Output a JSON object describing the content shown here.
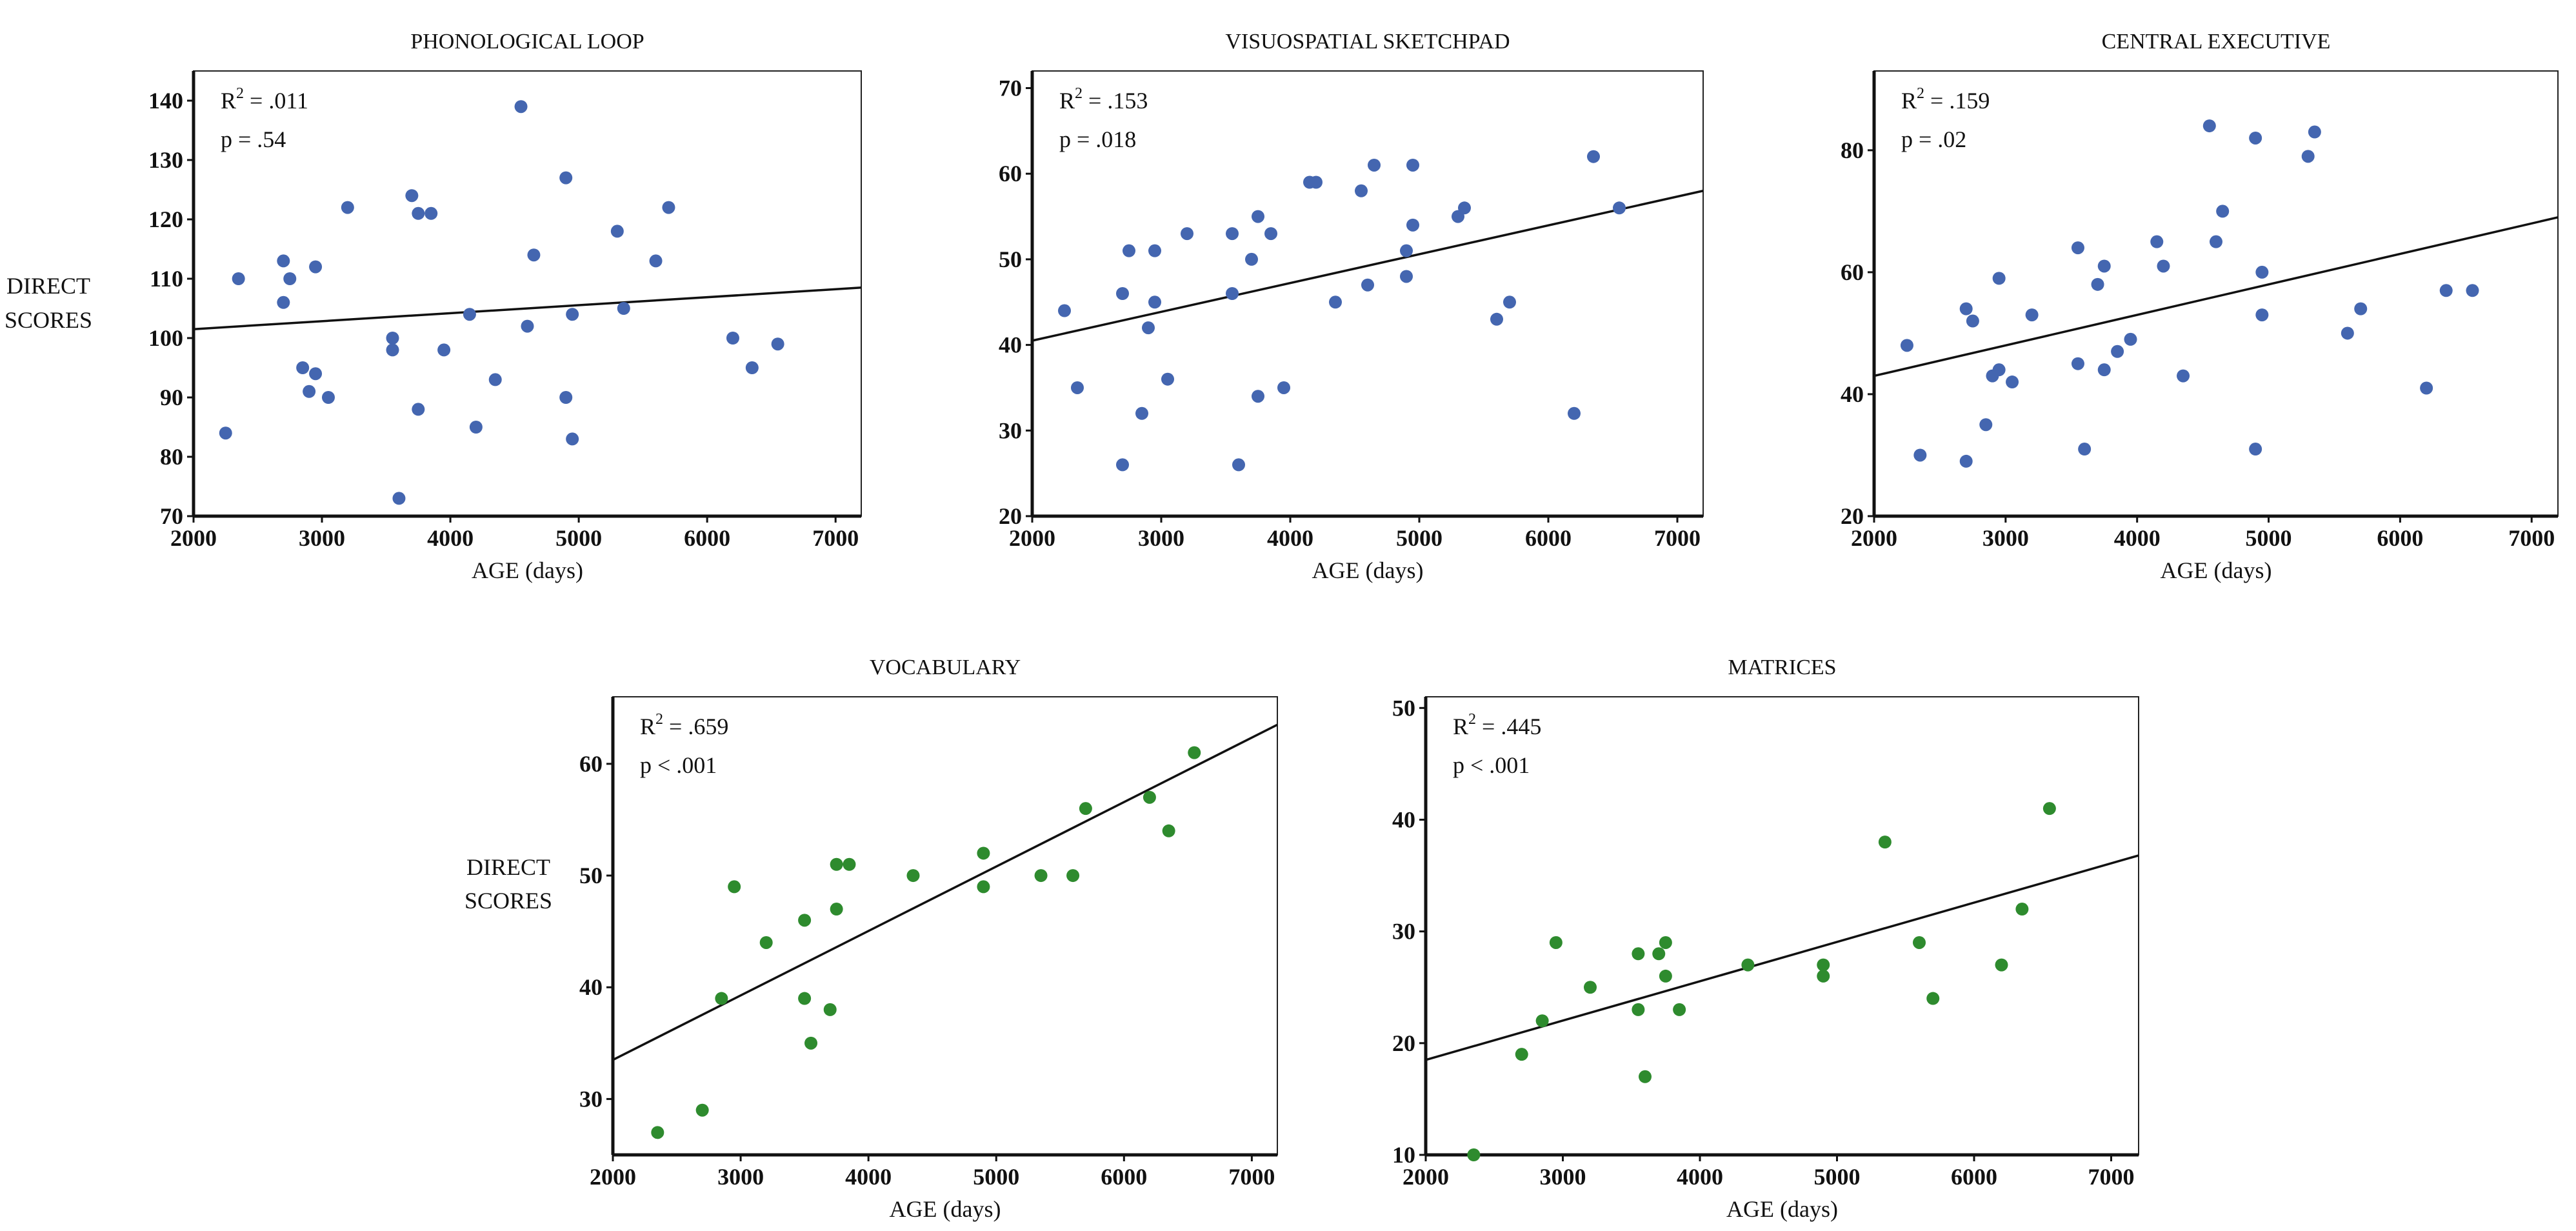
{
  "figure": {
    "y_axis_title_line1": "DIRECT",
    "y_axis_title_line2": "SCORES"
  },
  "chart_data": [
    {
      "type": "scatter",
      "title": "PHONOLOGICAL LOOP",
      "xlabel": "AGE (days)",
      "ylabel": "DIRECT SCORES",
      "xlim": [
        2000,
        7200
      ],
      "ylim": [
        70,
        145
      ],
      "xticks": [
        2000,
        3000,
        4000,
        5000,
        6000,
        7000
      ],
      "yticks": [
        70,
        80,
        90,
        100,
        110,
        120,
        130,
        140
      ],
      "stat_r2_label": "R",
      "stat_r2_exp": "2",
      "stat_r2_value": " = .011",
      "stat_p": "p = .54",
      "point_color": "#4466b0",
      "regression": {
        "x": [
          2000,
          7200
        ],
        "y": [
          101.5,
          108.5
        ]
      },
      "points": [
        [
          2250,
          84
        ],
        [
          2350,
          110
        ],
        [
          2700,
          113
        ],
        [
          2700,
          106
        ],
        [
          2750,
          110
        ],
        [
          2850,
          95
        ],
        [
          2900,
          91
        ],
        [
          2950,
          112
        ],
        [
          2950,
          94
        ],
        [
          3050,
          90
        ],
        [
          3200,
          122
        ],
        [
          3550,
          100
        ],
        [
          3550,
          98
        ],
        [
          3600,
          73
        ],
        [
          3700,
          124
        ],
        [
          3750,
          121
        ],
        [
          3750,
          88
        ],
        [
          3850,
          121
        ],
        [
          3950,
          98
        ],
        [
          4150,
          104
        ],
        [
          4200,
          85
        ],
        [
          4350,
          93
        ],
        [
          4550,
          139
        ],
        [
          4600,
          102
        ],
        [
          4650,
          114
        ],
        [
          4900,
          127
        ],
        [
          4900,
          90
        ],
        [
          4950,
          104
        ],
        [
          4950,
          83
        ],
        [
          5300,
          118
        ],
        [
          5350,
          105
        ],
        [
          5600,
          113
        ],
        [
          5700,
          122
        ],
        [
          6200,
          100
        ],
        [
          6350,
          95
        ],
        [
          6550,
          99
        ]
      ]
    },
    {
      "type": "scatter",
      "title": "VISUOSPATIAL SKETCHPAD",
      "xlabel": "AGE (days)",
      "ylabel": "",
      "xlim": [
        2000,
        7200
      ],
      "ylim": [
        20,
        72
      ],
      "xticks": [
        2000,
        3000,
        4000,
        5000,
        6000,
        7000
      ],
      "yticks": [
        20,
        30,
        40,
        50,
        60,
        70
      ],
      "stat_r2_label": "R",
      "stat_r2_exp": "2",
      "stat_r2_value": " = .153",
      "stat_p": "p = .018",
      "point_color": "#4466b0",
      "regression": {
        "x": [
          2000,
          7200
        ],
        "y": [
          40.5,
          58
        ]
      },
      "points": [
        [
          2250,
          44
        ],
        [
          2350,
          35
        ],
        [
          2700,
          26
        ],
        [
          2700,
          46
        ],
        [
          2750,
          51
        ],
        [
          2850,
          32
        ],
        [
          2900,
          42
        ],
        [
          2950,
          45
        ],
        [
          2950,
          51
        ],
        [
          3050,
          36
        ],
        [
          3200,
          53
        ],
        [
          3550,
          53
        ],
        [
          3550,
          46
        ],
        [
          3600,
          26
        ],
        [
          3700,
          50
        ],
        [
          3750,
          55
        ],
        [
          3750,
          34
        ],
        [
          3850,
          53
        ],
        [
          3950,
          35
        ],
        [
          4150,
          59
        ],
        [
          4200,
          59
        ],
        [
          4350,
          45
        ],
        [
          4550,
          58
        ],
        [
          4600,
          47
        ],
        [
          4650,
          61
        ],
        [
          4900,
          51
        ],
        [
          4900,
          48
        ],
        [
          4950,
          54
        ],
        [
          4950,
          61
        ],
        [
          5300,
          55
        ],
        [
          5350,
          56
        ],
        [
          5600,
          43
        ],
        [
          5700,
          45
        ],
        [
          6200,
          32
        ],
        [
          6350,
          62
        ],
        [
          6550,
          56
        ]
      ]
    },
    {
      "type": "scatter",
      "title": "CENTRAL EXECUTIVE",
      "xlabel": "AGE (days)",
      "ylabel": "",
      "xlim": [
        2000,
        7200
      ],
      "ylim": [
        20,
        93
      ],
      "xticks": [
        2000,
        3000,
        4000,
        5000,
        6000,
        7000
      ],
      "yticks": [
        20,
        40,
        60,
        80
      ],
      "stat_r2_label": "R",
      "stat_r2_exp": "2",
      "stat_r2_value": " = .159",
      "stat_p": "p = .02",
      "point_color": "#4466b0",
      "regression": {
        "x": [
          2000,
          7200
        ],
        "y": [
          43,
          69
        ]
      },
      "points": [
        [
          2250,
          48
        ],
        [
          2350,
          30
        ],
        [
          2700,
          29
        ],
        [
          2700,
          54
        ],
        [
          2750,
          52
        ],
        [
          2850,
          35
        ],
        [
          2900,
          43
        ],
        [
          2950,
          44
        ],
        [
          2950,
          59
        ],
        [
          3050,
          42
        ],
        [
          3200,
          53
        ],
        [
          3550,
          64
        ],
        [
          3550,
          45
        ],
        [
          3600,
          31
        ],
        [
          3700,
          58
        ],
        [
          3750,
          61
        ],
        [
          3750,
          44
        ],
        [
          3850,
          47
        ],
        [
          3950,
          49
        ],
        [
          4150,
          65
        ],
        [
          4200,
          61
        ],
        [
          4350,
          43
        ],
        [
          4550,
          84
        ],
        [
          4600,
          65
        ],
        [
          4650,
          70
        ],
        [
          4900,
          82
        ],
        [
          4900,
          31
        ],
        [
          4950,
          53
        ],
        [
          4950,
          60
        ],
        [
          5300,
          79
        ],
        [
          5350,
          83
        ],
        [
          5600,
          50
        ],
        [
          5700,
          54
        ],
        [
          6200,
          41
        ],
        [
          6350,
          57
        ],
        [
          6550,
          57
        ]
      ]
    },
    {
      "type": "scatter",
      "title": "VOCABULARY",
      "xlabel": "AGE (days)",
      "ylabel": "DIRECT SCORES",
      "xlim": [
        2000,
        7200
      ],
      "ylim": [
        25,
        66
      ],
      "xticks": [
        2000,
        3000,
        4000,
        5000,
        6000,
        7000
      ],
      "yticks": [
        30,
        40,
        50,
        60
      ],
      "stat_r2_label": "R",
      "stat_r2_exp": "2",
      "stat_r2_value": " = .659",
      "stat_p": "p < .001",
      "point_color": "#2e8b2e",
      "regression": {
        "x": [
          2000,
          7200
        ],
        "y": [
          33.5,
          63.5
        ]
      },
      "points": [
        [
          2350,
          27
        ],
        [
          2700,
          29
        ],
        [
          2850,
          39
        ],
        [
          2950,
          49
        ],
        [
          3200,
          44
        ],
        [
          3500,
          46
        ],
        [
          3500,
          39
        ],
        [
          3550,
          35
        ],
        [
          3700,
          38
        ],
        [
          3750,
          47
        ],
        [
          3750,
          51
        ],
        [
          3850,
          51
        ],
        [
          4350,
          50
        ],
        [
          4900,
          52
        ],
        [
          4900,
          49
        ],
        [
          5350,
          50
        ],
        [
          5600,
          50
        ],
        [
          5700,
          56
        ],
        [
          6200,
          57
        ],
        [
          6350,
          54
        ],
        [
          6550,
          61
        ]
      ]
    },
    {
      "type": "scatter",
      "title": "MATRICES",
      "xlabel": "AGE (days)",
      "ylabel": "",
      "xlim": [
        2000,
        7200
      ],
      "ylim": [
        10,
        51
      ],
      "xticks": [
        2000,
        3000,
        4000,
        5000,
        6000,
        7000
      ],
      "yticks": [
        10,
        20,
        30,
        40,
        50
      ],
      "stat_r2_label": "R",
      "stat_r2_exp": "2",
      "stat_r2_value": " = .445",
      "stat_p": "p < .001",
      "point_color": "#2e8b2e",
      "regression": {
        "x": [
          2000,
          7200
        ],
        "y": [
          18.5,
          36.8
        ]
      },
      "points": [
        [
          2350,
          10
        ],
        [
          2700,
          19
        ],
        [
          2850,
          22
        ],
        [
          2950,
          29
        ],
        [
          3200,
          25
        ],
        [
          3550,
          28
        ],
        [
          3550,
          23
        ],
        [
          3600,
          17
        ],
        [
          3700,
          28
        ],
        [
          3750,
          29
        ],
        [
          3750,
          26
        ],
        [
          3850,
          23
        ],
        [
          4350,
          27
        ],
        [
          4900,
          27
        ],
        [
          4900,
          26
        ],
        [
          5350,
          38
        ],
        [
          5600,
          29
        ],
        [
          5700,
          24
        ],
        [
          6200,
          27
        ],
        [
          6350,
          32
        ],
        [
          6550,
          41
        ]
      ]
    }
  ]
}
